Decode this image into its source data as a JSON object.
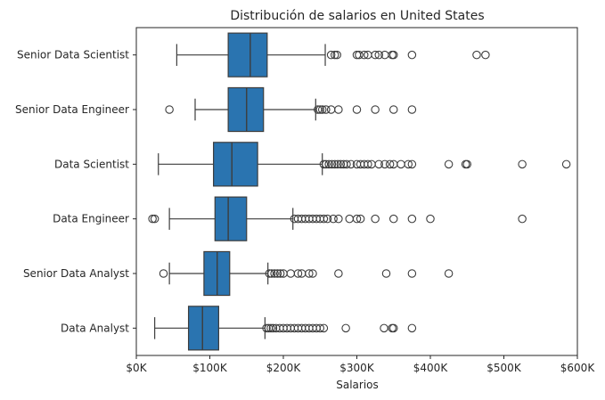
{
  "chart_data": {
    "type": "boxplot",
    "orientation": "horizontal",
    "title": "Distribución de salarios en United States",
    "xlabel": "Salarios",
    "ylabel": "",
    "xlim": [
      0,
      600000
    ],
    "x_ticks": [
      0,
      100000,
      200000,
      300000,
      400000,
      500000,
      600000
    ],
    "x_tick_labels": [
      "$0K",
      "$100K",
      "$200K",
      "$300K",
      "$400K",
      "$500K",
      "$600K"
    ],
    "grid": false,
    "box_color": "#2a74b0",
    "line_color": "#3d3d3d",
    "categories": [
      "Senior Data Scientist",
      "Senior Data Engineer",
      "Data Scientist",
      "Data Engineer",
      "Senior Data Analyst",
      "Data Analyst"
    ],
    "boxes": [
      {
        "category": "Senior Data Scientist",
        "whisker_low": 55000,
        "q1": 125000,
        "median": 155000,
        "q3": 178000,
        "whisker_high": 257000,
        "outliers": [
          265000,
          270000,
          273000,
          300000,
          303000,
          310000,
          315000,
          325000,
          330000,
          338000,
          348000,
          350000,
          375000,
          463000,
          475000
        ]
      },
      {
        "category": "Senior Data Engineer",
        "whisker_low": 80000,
        "q1": 125000,
        "median": 150000,
        "q3": 173000,
        "whisker_high": 244000,
        "outliers": [
          45000,
          247000,
          250000,
          253000,
          258000,
          265000,
          275000,
          300000,
          325000,
          350000,
          375000
        ]
      },
      {
        "category": "Data Scientist",
        "whisker_low": 30000,
        "q1": 105000,
        "median": 130000,
        "q3": 165000,
        "whisker_high": 253000,
        "outliers": [
          255000,
          258000,
          262000,
          266000,
          270000,
          274000,
          278000,
          282000,
          286000,
          292000,
          300000,
          305000,
          310000,
          315000,
          320000,
          330000,
          338000,
          345000,
          350000,
          360000,
          370000,
          375000,
          425000,
          448000,
          450000,
          525000,
          585000
        ]
      },
      {
        "category": "Data Engineer",
        "whisker_low": 45000,
        "q1": 107000,
        "median": 125000,
        "q3": 150000,
        "whisker_high": 213000,
        "outliers": [
          22000,
          25000,
          215000,
          220000,
          225000,
          230000,
          235000,
          240000,
          245000,
          250000,
          255000,
          260000,
          268000,
          275000,
          290000,
          300000,
          305000,
          325000,
          350000,
          375000,
          400000,
          525000
        ]
      },
      {
        "category": "Senior Data Analyst",
        "whisker_low": 45000,
        "q1": 92000,
        "median": 110000,
        "q3": 127000,
        "whisker_high": 179000,
        "outliers": [
          37000,
          181000,
          184000,
          188000,
          192000,
          196000,
          200000,
          210000,
          220000,
          225000,
          235000,
          240000,
          275000,
          340000,
          375000,
          425000
        ]
      },
      {
        "category": "Data Analyst",
        "whisker_low": 25000,
        "q1": 71000,
        "median": 90000,
        "q3": 112000,
        "whisker_high": 175000,
        "outliers": [
          177000,
          180000,
          183000,
          186000,
          190000,
          195000,
          200000,
          205000,
          210000,
          215000,
          220000,
          225000,
          230000,
          235000,
          240000,
          245000,
          250000,
          255000,
          285000,
          337000,
          348000,
          350000,
          375000
        ]
      }
    ]
  }
}
